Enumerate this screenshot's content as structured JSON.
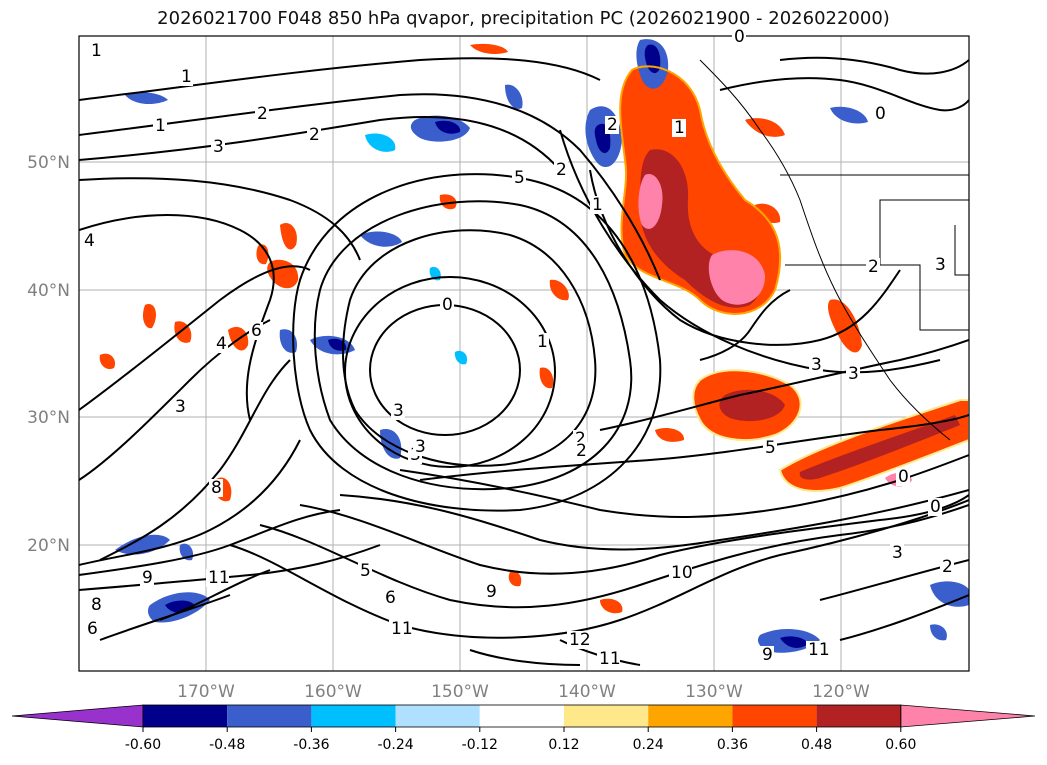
{
  "title": "2026021700 F048 850 hPa qvapor, precipitation PC (2026021900 - 2026022000)",
  "map": {
    "lat_labels": [
      "50°N",
      "40°N",
      "30°N",
      "20°N"
    ],
    "lon_labels": [
      "170°W",
      "160°W",
      "150°W",
      "140°W",
      "130°W",
      "120°W"
    ],
    "contour_labels": [
      "1",
      "1",
      "2",
      "3",
      "2",
      "4",
      "1",
      "3",
      "0",
      "1",
      "3",
      "2",
      "5",
      "2",
      "1",
      "0",
      "0",
      "1",
      "2",
      "4",
      "3",
      "3",
      "6",
      "8",
      "9",
      "11",
      "8",
      "6",
      "5",
      "6",
      "9",
      "10",
      "11",
      "12",
      "11",
      "11",
      "9",
      "2",
      "3",
      "5",
      "0",
      "0",
      "3",
      "2",
      "2",
      "3",
      "3"
    ]
  },
  "colorbar": {
    "boundaries": [
      "-0.60",
      "-0.48",
      "-0.36",
      "-0.24",
      "-0.12",
      "0.12",
      "0.24",
      "0.36",
      "0.48",
      "0.60"
    ],
    "colors": [
      "#9932cc",
      "#00008b",
      "#3a5fcd",
      "#00bfff",
      "#b0e0ff",
      "#ffffff",
      "#ffe88a",
      "#ffa500",
      "#ff4500",
      "#b22222",
      "#ff82ab"
    ]
  }
}
